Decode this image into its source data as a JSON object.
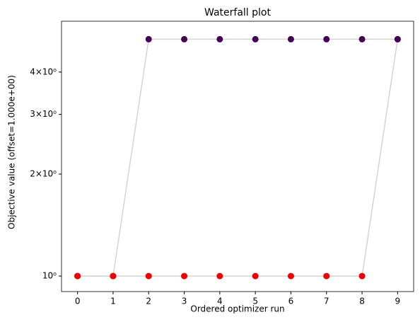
{
  "chart_data": {
    "type": "line",
    "title": "Waterfall plot",
    "x_label": "Ordered optimizer run",
    "y_label": "Objective value (offset=1.000e+00)",
    "x": [
      0,
      1,
      2,
      3,
      4,
      5,
      6,
      7,
      8,
      9
    ],
    "series": [
      {
        "color": "#d3d3d3",
        "values": [
          1,
          1,
          5,
          5,
          5,
          5,
          5,
          5,
          5,
          5
        ],
        "marker_colors": [
          "#ee0000",
          "#ee0000",
          "#440154",
          "#440154",
          "#440154",
          "#440154",
          "#440154",
          "#440154",
          "#440154",
          "#440154"
        ]
      },
      {
        "color": "#d3d3d3",
        "values": [
          1,
          1,
          1,
          1,
          1,
          1,
          1,
          1,
          1,
          5
        ],
        "marker_colors": [
          "#ee0000",
          "#ee0000",
          "#ee0000",
          "#ee0000",
          "#ee0000",
          "#ee0000",
          "#ee0000",
          "#ee0000",
          "#ee0000",
          "#440154"
        ]
      }
    ],
    "xlim": [
      -0.45,
      9.45
    ],
    "xticks": [
      0,
      1,
      2,
      3,
      4,
      5,
      6,
      7,
      8,
      9
    ],
    "ylim": [
      0.9,
      5.65
    ],
    "ylog": true,
    "yticks": [
      {
        "value": 1,
        "label": "10⁰"
      },
      {
        "value": 2,
        "label": "2×10⁰"
      },
      {
        "value": 3,
        "label": "3×10⁰"
      },
      {
        "value": 4,
        "label": "4×10⁰"
      }
    ]
  }
}
